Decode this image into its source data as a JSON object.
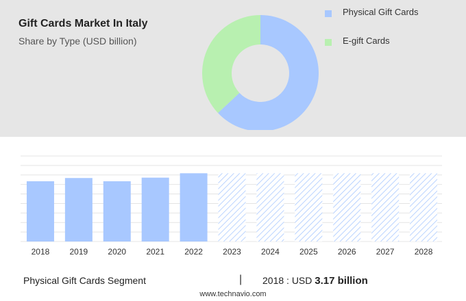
{
  "header": {
    "title": "Gift Cards Market In Italy",
    "subtitle": "Share by Type (USD billion)"
  },
  "legend": [
    {
      "label": "Physical Gift Cards",
      "color": "#a8c8ff"
    },
    {
      "label": "E-gift Cards",
      "color": "#b8f0b0"
    }
  ],
  "chart_data": [
    {
      "type": "pie",
      "variant": "donut",
      "series": [
        {
          "name": "Physical Gift Cards",
          "value": 63,
          "color": "#a8c8ff"
        },
        {
          "name": "E-gift Cards",
          "value": 37,
          "color": "#b8f0b0"
        }
      ]
    },
    {
      "type": "bar",
      "categories": [
        "2018",
        "2019",
        "2020",
        "2021",
        "2022",
        "2023",
        "2024",
        "2025",
        "2026",
        "2027",
        "2028"
      ],
      "values": [
        3.17,
        3.34,
        3.17,
        3.36,
        3.59,
        3.59,
        3.59,
        3.59,
        3.59,
        3.59,
        3.59
      ],
      "forecast_from_index": 5,
      "bar_color": "#a8c8ff",
      "forecast_style": "hatched",
      "ylim": [
        0,
        4.5
      ],
      "grid": true
    }
  ],
  "footer": {
    "segment": "Physical Gift Cards Segment",
    "separator": "|",
    "year_label": "2018 : USD",
    "value": "3.17 billion",
    "source": "www.technavio.com"
  }
}
